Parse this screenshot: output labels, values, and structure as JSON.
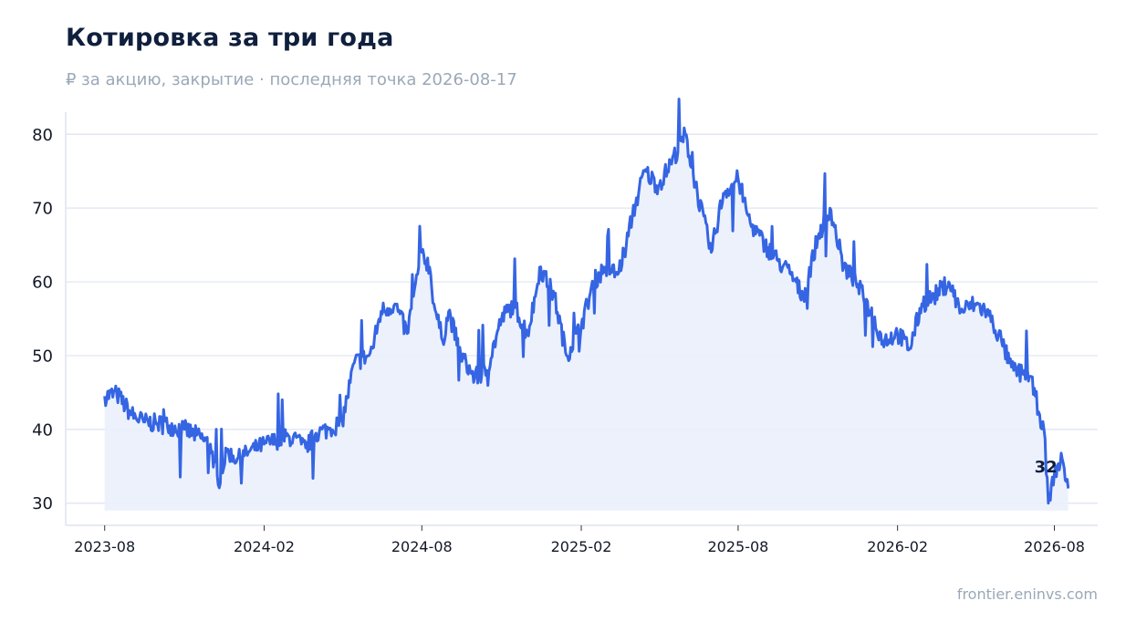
{
  "header": {
    "title": "Котировка за три года",
    "subtitle": "₽ за акцию, закрытие · последняя точка 2026-08-17"
  },
  "footer": {
    "source": "frontier.eninvs.com"
  },
  "colors": {
    "line": "#3565e3",
    "area": "#eaf0fc",
    "grid": "#dde3f0",
    "axis": "#dde3f0",
    "text": "#111827"
  },
  "chart_data": {
    "type": "line",
    "title": "Котировка за три года",
    "subtitle": "₽ за акцию, закрытие · последняя точка 2026-08-17",
    "xlabel": "",
    "ylabel": "",
    "x_ticks": [
      "2023-08",
      "2024-02",
      "2024-08",
      "2025-02",
      "2025-08",
      "2026-02",
      "2026-08"
    ],
    "y_ticks": [
      30,
      40,
      50,
      60,
      70,
      80
    ],
    "xlim": [
      "2023-06-17",
      "2026-09-20"
    ],
    "ylim": [
      27,
      83
    ],
    "grid": true,
    "last_label": "32",
    "series": [
      {
        "x": [
          "2023-08-01",
          "2023-08-15",
          "2023-09-01",
          "2023-09-15",
          "2023-10-01",
          "2023-10-15",
          "2023-11-01",
          "2023-11-15",
          "2023-12-01",
          "2023-12-10",
          "2023-12-20",
          "2024-01-01",
          "2024-01-15",
          "2024-02-01",
          "2024-02-15",
          "2024-03-01",
          "2024-03-15",
          "2024-03-20",
          "2024-04-01",
          "2024-04-15",
          "2024-05-01",
          "2024-05-15",
          "2024-06-01",
          "2024-06-05",
          "2024-06-15",
          "2024-07-01",
          "2024-07-15",
          "2024-08-01",
          "2024-08-10",
          "2024-08-15",
          "2024-08-25",
          "2024-09-01",
          "2024-09-15",
          "2024-10-01",
          "2024-10-15",
          "2024-11-01",
          "2024-11-15",
          "2024-12-01",
          "2024-12-10",
          "2024-12-15",
          "2025-01-01",
          "2025-01-15",
          "2025-02-01",
          "2025-02-15",
          "2025-03-01",
          "2025-03-15",
          "2025-03-25",
          "2025-04-01",
          "2025-04-15",
          "2025-05-01",
          "2025-05-15",
          "2025-06-01",
          "2025-06-15",
          "2025-07-01",
          "2025-07-15",
          "2025-08-01",
          "2025-08-10",
          "2025-08-15",
          "2025-09-01",
          "2025-09-15",
          "2025-10-01",
          "2025-10-15",
          "2025-11-01",
          "2025-11-15",
          "2025-12-01",
          "2025-12-15",
          "2026-01-01",
          "2026-01-15",
          "2026-02-01",
          "2026-02-15",
          "2026-03-01",
          "2026-03-15",
          "2026-04-01",
          "2026-04-15",
          "2026-05-01",
          "2026-05-15",
          "2026-06-01",
          "2026-06-10",
          "2026-06-15",
          "2026-06-25",
          "2026-07-01",
          "2026-07-10",
          "2026-07-15",
          "2026-07-20",
          "2026-07-25",
          "2026-08-01",
          "2026-08-10",
          "2026-08-17"
        ],
        "y": [
          44.5,
          44.8,
          42.0,
          41.0,
          40.8,
          40.5,
          40.0,
          39.2,
          38.0,
          32.5,
          37.0,
          36.0,
          37.0,
          38.0,
          38.5,
          39.0,
          38.0,
          37.5,
          39.5,
          40.0,
          41.0,
          49.0,
          50.0,
          51.0,
          56.0,
          57.0,
          53.0,
          64.0,
          62.0,
          57.0,
          52.0,
          56.0,
          50.0,
          47.0,
          48.0,
          55.0,
          57.0,
          53.0,
          58.0,
          62.0,
          58.0,
          50.0,
          54.0,
          60.0,
          62.0,
          61.0,
          65.0,
          69.0,
          75.0,
          73.0,
          76.0,
          80.0,
          72.0,
          64.0,
          72.0,
          74.0,
          70.0,
          68.0,
          65.0,
          63.0,
          61.0,
          58.0,
          66.0,
          70.0,
          62.0,
          60.0,
          56.0,
          52.0,
          53.0,
          51.0,
          57.0,
          58.0,
          60.0,
          56.0,
          57.0,
          56.0,
          52.0,
          49.0,
          48.0,
          47.5,
          48.0,
          44.5,
          42.0,
          40.0,
          30.0,
          34.0,
          36.0,
          32.0
        ]
      }
    ]
  }
}
